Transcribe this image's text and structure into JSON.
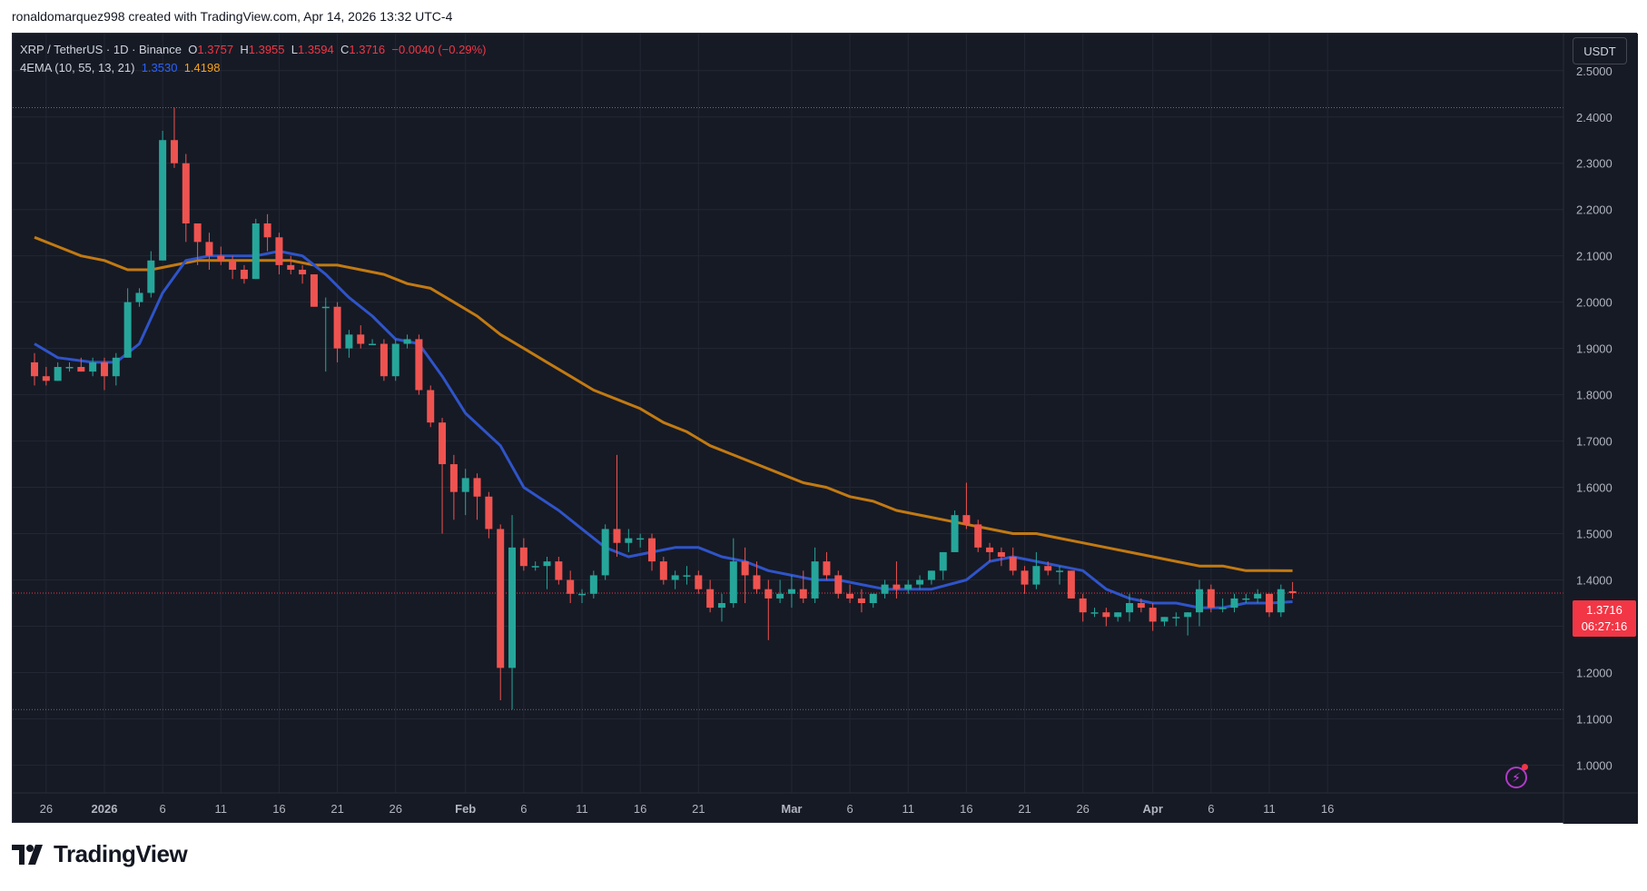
{
  "credit": "ronaldomarquez998 created with TradingView.com, Apr 14, 2026 13:32 UTC-4",
  "legend": {
    "symbol": "XRP / TetherUS · 1D · Binance",
    "open_label": "O",
    "open": "1.3757",
    "high_label": "H",
    "high": "1.3955",
    "low_label": "L",
    "low": "1.3594",
    "close_label": "C",
    "close": "1.3716",
    "change": "−0.0040 (−0.29%)",
    "indicator": "4EMA (10, 55, 13, 21)",
    "ema_fast_value": "1.3530",
    "ema_slow_value": "1.4198"
  },
  "currency_button": "USDT",
  "last_price_tag": {
    "price": "1.3716",
    "countdown": "06:27:16"
  },
  "brand": "TradingView",
  "colors": {
    "background": "#161a25",
    "grid": "#232733",
    "up": "#26a69a",
    "down": "#ef5350",
    "ema_fast": "#2f54c9",
    "ema_slow": "#c27a12",
    "text": "#b2b5be"
  },
  "chart_data": {
    "type": "candlestick",
    "ylim": [
      0.94,
      2.58
    ],
    "y_ticks": [
      "2.5000",
      "2.4000",
      "2.3000",
      "2.2000",
      "2.1000",
      "2.0000",
      "1.9000",
      "1.8000",
      "1.7000",
      "1.6000",
      "1.5000",
      "1.4000",
      "1.3000",
      "1.2000",
      "1.1000",
      "1.0000"
    ],
    "x_ticks": [
      {
        "label": "26",
        "day": 1
      },
      {
        "label": "2026",
        "day": 6
      },
      {
        "label": "6",
        "day": 11
      },
      {
        "label": "11",
        "day": 16
      },
      {
        "label": "16",
        "day": 21
      },
      {
        "label": "21",
        "day": 26
      },
      {
        "label": "26",
        "day": 31
      },
      {
        "label": "Feb",
        "day": 37
      },
      {
        "label": "6",
        "day": 42
      },
      {
        "label": "11",
        "day": 47
      },
      {
        "label": "16",
        "day": 52
      },
      {
        "label": "21",
        "day": 57
      },
      {
        "label": "Mar",
        "day": 65
      },
      {
        "label": "6",
        "day": 70
      },
      {
        "label": "11",
        "day": 75
      },
      {
        "label": "16",
        "day": 80
      },
      {
        "label": "21",
        "day": 85
      },
      {
        "label": "26",
        "day": 90
      },
      {
        "label": "Apr",
        "day": 96
      },
      {
        "label": "6",
        "day": 101
      },
      {
        "label": "11",
        "day": 106
      },
      {
        "label": "16",
        "day": 111
      }
    ],
    "candles": [
      [
        1.87,
        1.89,
        1.82,
        1.84
      ],
      [
        1.84,
        1.86,
        1.82,
        1.83
      ],
      [
        1.83,
        1.87,
        1.83,
        1.86
      ],
      [
        1.86,
        1.87,
        1.85,
        1.86
      ],
      [
        1.86,
        1.88,
        1.85,
        1.85
      ],
      [
        1.85,
        1.88,
        1.84,
        1.87
      ],
      [
        1.87,
        1.88,
        1.81,
        1.84
      ],
      [
        1.84,
        1.89,
        1.82,
        1.88
      ],
      [
        1.88,
        2.03,
        1.88,
        2.0
      ],
      [
        2.0,
        2.03,
        1.99,
        2.02
      ],
      [
        2.02,
        2.11,
        2.01,
        2.09
      ],
      [
        2.09,
        2.37,
        2.09,
        2.35
      ],
      [
        2.35,
        2.42,
        2.29,
        2.3
      ],
      [
        2.3,
        2.32,
        2.13,
        2.17
      ],
      [
        2.17,
        2.17,
        2.08,
        2.13
      ],
      [
        2.13,
        2.15,
        2.07,
        2.1
      ],
      [
        2.1,
        2.12,
        2.08,
        2.09
      ],
      [
        2.09,
        2.1,
        2.05,
        2.07
      ],
      [
        2.07,
        2.08,
        2.04,
        2.05
      ],
      [
        2.05,
        2.18,
        2.05,
        2.17
      ],
      [
        2.17,
        2.19,
        2.11,
        2.14
      ],
      [
        2.14,
        2.15,
        2.06,
        2.08
      ],
      [
        2.08,
        2.1,
        2.06,
        2.07
      ],
      [
        2.07,
        2.08,
        2.04,
        2.06
      ],
      [
        2.06,
        2.06,
        1.99,
        1.99
      ],
      [
        1.99,
        2.01,
        1.85,
        1.99
      ],
      [
        1.99,
        2.0,
        1.87,
        1.9
      ],
      [
        1.9,
        1.94,
        1.88,
        1.93
      ],
      [
        1.93,
        1.95,
        1.9,
        1.91
      ],
      [
        1.91,
        1.92,
        1.91,
        1.91
      ],
      [
        1.91,
        1.92,
        1.83,
        1.84
      ],
      [
        1.84,
        1.92,
        1.83,
        1.91
      ],
      [
        1.91,
        1.93,
        1.9,
        1.92
      ],
      [
        1.92,
        1.93,
        1.8,
        1.81
      ],
      [
        1.81,
        1.82,
        1.73,
        1.74
      ],
      [
        1.74,
        1.75,
        1.5,
        1.65
      ],
      [
        1.65,
        1.67,
        1.53,
        1.59
      ],
      [
        1.59,
        1.64,
        1.54,
        1.62
      ],
      [
        1.62,
        1.63,
        1.53,
        1.58
      ],
      [
        1.58,
        1.59,
        1.49,
        1.51
      ],
      [
        1.51,
        1.52,
        1.14,
        1.21
      ],
      [
        1.21,
        1.54,
        1.12,
        1.47
      ],
      [
        1.47,
        1.49,
        1.42,
        1.43
      ],
      [
        1.43,
        1.44,
        1.42,
        1.43
      ],
      [
        1.43,
        1.45,
        1.38,
        1.44
      ],
      [
        1.44,
        1.45,
        1.39,
        1.4
      ],
      [
        1.4,
        1.42,
        1.35,
        1.37
      ],
      [
        1.37,
        1.38,
        1.35,
        1.37
      ],
      [
        1.37,
        1.42,
        1.36,
        1.41
      ],
      [
        1.41,
        1.52,
        1.4,
        1.51
      ],
      [
        1.51,
        1.67,
        1.45,
        1.48
      ],
      [
        1.48,
        1.51,
        1.46,
        1.49
      ],
      [
        1.49,
        1.5,
        1.47,
        1.49
      ],
      [
        1.49,
        1.5,
        1.42,
        1.44
      ],
      [
        1.44,
        1.45,
        1.39,
        1.4
      ],
      [
        1.4,
        1.42,
        1.38,
        1.41
      ],
      [
        1.41,
        1.43,
        1.39,
        1.41
      ],
      [
        1.41,
        1.42,
        1.37,
        1.38
      ],
      [
        1.38,
        1.4,
        1.33,
        1.34
      ],
      [
        1.34,
        1.37,
        1.31,
        1.35
      ],
      [
        1.35,
        1.49,
        1.34,
        1.44
      ],
      [
        1.44,
        1.47,
        1.35,
        1.41
      ],
      [
        1.41,
        1.44,
        1.37,
        1.38
      ],
      [
        1.38,
        1.4,
        1.27,
        1.36
      ],
      [
        1.36,
        1.4,
        1.35,
        1.37
      ],
      [
        1.37,
        1.41,
        1.34,
        1.38
      ],
      [
        1.38,
        1.42,
        1.35,
        1.36
      ],
      [
        1.36,
        1.47,
        1.35,
        1.44
      ],
      [
        1.44,
        1.46,
        1.4,
        1.41
      ],
      [
        1.41,
        1.42,
        1.36,
        1.37
      ],
      [
        1.37,
        1.39,
        1.35,
        1.36
      ],
      [
        1.36,
        1.38,
        1.33,
        1.35
      ],
      [
        1.35,
        1.37,
        1.34,
        1.37
      ],
      [
        1.37,
        1.4,
        1.36,
        1.39
      ],
      [
        1.39,
        1.44,
        1.36,
        1.38
      ],
      [
        1.38,
        1.4,
        1.37,
        1.39
      ],
      [
        1.39,
        1.41,
        1.38,
        1.4
      ],
      [
        1.4,
        1.42,
        1.39,
        1.42
      ],
      [
        1.42,
        1.46,
        1.4,
        1.46
      ],
      [
        1.46,
        1.55,
        1.46,
        1.54
      ],
      [
        1.54,
        1.61,
        1.51,
        1.52
      ],
      [
        1.52,
        1.53,
        1.46,
        1.47
      ],
      [
        1.47,
        1.48,
        1.44,
        1.46
      ],
      [
        1.46,
        1.47,
        1.43,
        1.45
      ],
      [
        1.45,
        1.47,
        1.41,
        1.42
      ],
      [
        1.42,
        1.43,
        1.37,
        1.39
      ],
      [
        1.39,
        1.46,
        1.38,
        1.43
      ],
      [
        1.43,
        1.44,
        1.41,
        1.42
      ],
      [
        1.42,
        1.43,
        1.39,
        1.42
      ],
      [
        1.42,
        1.42,
        1.36,
        1.36
      ],
      [
        1.36,
        1.37,
        1.31,
        1.33
      ],
      [
        1.33,
        1.34,
        1.32,
        1.33
      ],
      [
        1.33,
        1.34,
        1.3,
        1.32
      ],
      [
        1.32,
        1.33,
        1.31,
        1.33
      ],
      [
        1.33,
        1.37,
        1.31,
        1.35
      ],
      [
        1.35,
        1.36,
        1.33,
        1.34
      ],
      [
        1.34,
        1.35,
        1.29,
        1.31
      ],
      [
        1.31,
        1.32,
        1.3,
        1.32
      ],
      [
        1.32,
        1.33,
        1.3,
        1.32
      ],
      [
        1.32,
        1.33,
        1.28,
        1.33
      ],
      [
        1.33,
        1.4,
        1.3,
        1.38
      ],
      [
        1.38,
        1.39,
        1.33,
        1.34
      ],
      [
        1.34,
        1.36,
        1.33,
        1.34
      ],
      [
        1.34,
        1.37,
        1.33,
        1.36
      ],
      [
        1.36,
        1.37,
        1.35,
        1.36
      ],
      [
        1.36,
        1.38,
        1.35,
        1.37
      ],
      [
        1.37,
        1.37,
        1.32,
        1.33
      ],
      [
        1.33,
        1.39,
        1.32,
        1.38
      ],
      [
        1.3757,
        1.3955,
        1.3594,
        1.3716
      ]
    ],
    "ema_fast": {
      "name": "4EMA (10, 55, 13, 21)",
      "points": [
        [
          0,
          1.91
        ],
        [
          2,
          1.88
        ],
        [
          5,
          1.87
        ],
        [
          7,
          1.87
        ],
        [
          9,
          1.91
        ],
        [
          11,
          2.02
        ],
        [
          13,
          2.09
        ],
        [
          15,
          2.1
        ],
        [
          17,
          2.1
        ],
        [
          19,
          2.1
        ],
        [
          21,
          2.11
        ],
        [
          23,
          2.1
        ],
        [
          25,
          2.06
        ],
        [
          27,
          2.01
        ],
        [
          29,
          1.97
        ],
        [
          31,
          1.92
        ],
        [
          33,
          1.91
        ],
        [
          35,
          1.84
        ],
        [
          37,
          1.76
        ],
        [
          40,
          1.69
        ],
        [
          42,
          1.6
        ],
        [
          45,
          1.55
        ],
        [
          47,
          1.51
        ],
        [
          49,
          1.47
        ],
        [
          51,
          1.45
        ],
        [
          53,
          1.46
        ],
        [
          55,
          1.47
        ],
        [
          57,
          1.47
        ],
        [
          59,
          1.45
        ],
        [
          61,
          1.44
        ],
        [
          63,
          1.42
        ],
        [
          65,
          1.41
        ],
        [
          67,
          1.4
        ],
        [
          69,
          1.4
        ],
        [
          71,
          1.39
        ],
        [
          73,
          1.38
        ],
        [
          75,
          1.38
        ],
        [
          77,
          1.38
        ],
        [
          80,
          1.4
        ],
        [
          82,
          1.44
        ],
        [
          84,
          1.45
        ],
        [
          86,
          1.44
        ],
        [
          88,
          1.43
        ],
        [
          90,
          1.42
        ],
        [
          92,
          1.38
        ],
        [
          94,
          1.36
        ],
        [
          96,
          1.35
        ],
        [
          98,
          1.35
        ],
        [
          100,
          1.34
        ],
        [
          102,
          1.34
        ],
        [
          104,
          1.35
        ],
        [
          106,
          1.35
        ],
        [
          108,
          1.353
        ]
      ]
    },
    "ema_slow": {
      "name": "4EMA (10, 55, 13, 21)",
      "points": [
        [
          0,
          2.14
        ],
        [
          2,
          2.12
        ],
        [
          4,
          2.1
        ],
        [
          6,
          2.09
        ],
        [
          8,
          2.07
        ],
        [
          10,
          2.07
        ],
        [
          12,
          2.08
        ],
        [
          14,
          2.09
        ],
        [
          16,
          2.09
        ],
        [
          18,
          2.09
        ],
        [
          20,
          2.09
        ],
        [
          22,
          2.09
        ],
        [
          24,
          2.08
        ],
        [
          26,
          2.08
        ],
        [
          28,
          2.07
        ],
        [
          30,
          2.06
        ],
        [
          32,
          2.04
        ],
        [
          34,
          2.03
        ],
        [
          36,
          2.0
        ],
        [
          38,
          1.97
        ],
        [
          40,
          1.93
        ],
        [
          42,
          1.9
        ],
        [
          44,
          1.87
        ],
        [
          46,
          1.84
        ],
        [
          48,
          1.81
        ],
        [
          50,
          1.79
        ],
        [
          52,
          1.77
        ],
        [
          54,
          1.74
        ],
        [
          56,
          1.72
        ],
        [
          58,
          1.69
        ],
        [
          60,
          1.67
        ],
        [
          62,
          1.65
        ],
        [
          64,
          1.63
        ],
        [
          66,
          1.61
        ],
        [
          68,
          1.6
        ],
        [
          70,
          1.58
        ],
        [
          72,
          1.57
        ],
        [
          74,
          1.55
        ],
        [
          76,
          1.54
        ],
        [
          78,
          1.53
        ],
        [
          80,
          1.52
        ],
        [
          82,
          1.51
        ],
        [
          84,
          1.5
        ],
        [
          86,
          1.5
        ],
        [
          88,
          1.49
        ],
        [
          90,
          1.48
        ],
        [
          92,
          1.47
        ],
        [
          94,
          1.46
        ],
        [
          96,
          1.45
        ],
        [
          98,
          1.44
        ],
        [
          100,
          1.43
        ],
        [
          102,
          1.43
        ],
        [
          104,
          1.42
        ],
        [
          106,
          1.42
        ],
        [
          108,
          1.4198
        ]
      ]
    },
    "last_price": 1.3716,
    "dotted_levels": [
      2.42,
      1.12
    ]
  }
}
